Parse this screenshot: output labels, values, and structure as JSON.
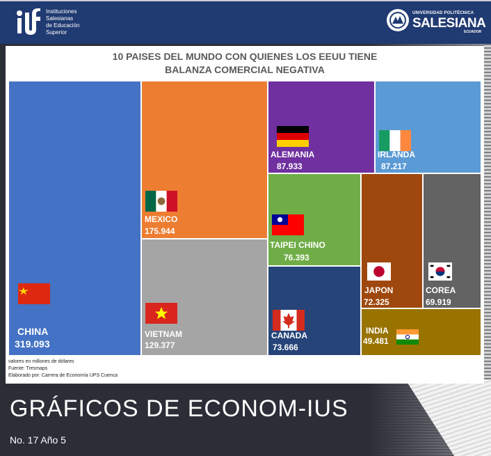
{
  "header": {
    "left_logo_text": [
      "Instituciones",
      "Salesianas",
      "de Educación",
      "Superior"
    ],
    "right_logo_small": "UNIVERSIDAD POLITÉCNICA",
    "right_logo_big": "SALESIANA",
    "right_logo_country": "ECUADOR"
  },
  "chart_data": {
    "type": "treemap",
    "title_lines": [
      "10 PAISES DEL MUNDO CON QUIENES LOS EEUU TIENE",
      "BALANZA COMERCIAL NEGATIVA"
    ],
    "items": [
      {
        "label": "CHINA",
        "value": 319.093,
        "display": "319.093",
        "color": "#4472c4",
        "flag": "china-flag"
      },
      {
        "label": "MEXICO",
        "value": 175.944,
        "display": "175.944",
        "color": "#ed7d31",
        "flag": "mexico-flag"
      },
      {
        "label": "VIETNAM",
        "value": 129.377,
        "display": "129.377",
        "color": "#a5a5a5",
        "flag": "vietnam-flag"
      },
      {
        "label": "ALEMANIA",
        "value": 87.933,
        "display": "87.933",
        "color": "#7030a0",
        "flag": "germany-flag"
      },
      {
        "label": "IRLANDA",
        "value": 87.217,
        "display": "87.217",
        "color": "#5b9bd5",
        "flag": "ireland-flag"
      },
      {
        "label": "TAIPEI CHINO",
        "value": 76.393,
        "display": "76.393",
        "color": "#70ad47",
        "flag": "taiwan-flag"
      },
      {
        "label": "CANADA",
        "value": 73.666,
        "display": "73.666",
        "color": "#264478",
        "flag": "canada-flag"
      },
      {
        "label": "JAPON",
        "value": 72.325,
        "display": "72.325",
        "color": "#9e480e",
        "flag": "japan-flag"
      },
      {
        "label": "COREA",
        "value": 69.919,
        "display": "69.919",
        "color": "#636363",
        "flag": "korea-flag"
      },
      {
        "label": "INDIA",
        "value": 49.481,
        "display": "49.481",
        "color": "#997300",
        "flag": "india-flag"
      }
    ],
    "notes": [
      "valores en millones de dólares",
      "Fuente: Tresmaps",
      "Elaborado por: Carrera de Economía UPS Cuenca"
    ]
  },
  "footer": {
    "title": "GRÁFICOS DE ECONOM-IUS",
    "issue": "No. 17 Año 5"
  }
}
